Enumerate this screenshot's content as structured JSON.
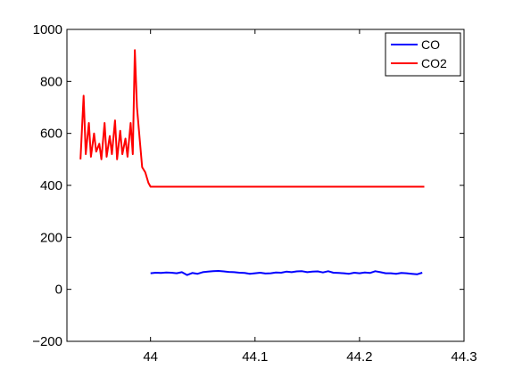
{
  "chart_data": {
    "type": "line",
    "title": "",
    "xlabel": "",
    "ylabel": "",
    "xlim": [
      43.92,
      44.3
    ],
    "ylim": [
      -200,
      1000
    ],
    "x_ticks": [
      44,
      44.1,
      44.2,
      44.3
    ],
    "x_tick_labels": [
      "44",
      "44.1",
      "44.2",
      "44.3"
    ],
    "y_ticks": [
      -200,
      0,
      200,
      400,
      600,
      800,
      1000
    ],
    "y_tick_labels": [
      "−200",
      "0",
      "200",
      "400",
      "600",
      "800",
      "1000"
    ],
    "grid": false,
    "legend_position": "top-right",
    "series": [
      {
        "name": "CO",
        "color": "#0000ff",
        "x": [
          44.0,
          44.005,
          44.01,
          44.015,
          44.02,
          44.025,
          44.03,
          44.035,
          44.04,
          44.045,
          44.05,
          44.055,
          44.06,
          44.065,
          44.07,
          44.075,
          44.08,
          44.085,
          44.09,
          44.095,
          44.1,
          44.105,
          44.11,
          44.115,
          44.12,
          44.125,
          44.13,
          44.135,
          44.14,
          44.145,
          44.15,
          44.155,
          44.16,
          44.165,
          44.17,
          44.175,
          44.18,
          44.185,
          44.19,
          44.195,
          44.2,
          44.205,
          44.21,
          44.215,
          44.22,
          44.225,
          44.23,
          44.235,
          44.24,
          44.245,
          44.25,
          44.255,
          44.26
        ],
        "y": [
          62,
          64,
          63,
          65,
          64,
          62,
          66,
          55,
          63,
          60,
          66,
          68,
          70,
          71,
          69,
          67,
          66,
          64,
          63,
          60,
          62,
          64,
          61,
          62,
          65,
          64,
          68,
          66,
          69,
          70,
          66,
          68,
          69,
          65,
          70,
          64,
          63,
          62,
          60,
          64,
          62,
          65,
          63,
          70,
          66,
          62,
          62,
          60,
          63,
          62,
          60,
          58,
          64
        ]
      },
      {
        "name": "CO2",
        "color": "#ff0000",
        "x": [
          43.933,
          43.936,
          43.938,
          43.941,
          43.943,
          43.946,
          43.948,
          43.951,
          43.953,
          43.956,
          43.958,
          43.961,
          43.963,
          43.966,
          43.968,
          43.971,
          43.973,
          43.976,
          43.978,
          43.981,
          43.983,
          43.985,
          43.987,
          43.99,
          43.992,
          43.995,
          43.998,
          44.0,
          44.02,
          44.04,
          44.06,
          44.08,
          44.1,
          44.12,
          44.14,
          44.16,
          44.18,
          44.2,
          44.22,
          44.24,
          44.262
        ],
        "y": [
          500,
          745,
          520,
          640,
          510,
          600,
          530,
          560,
          500,
          640,
          510,
          590,
          520,
          650,
          500,
          610,
          520,
          580,
          510,
          640,
          520,
          920,
          700,
          560,
          470,
          450,
          410,
          395,
          395,
          395,
          395,
          395,
          395,
          395,
          395,
          395,
          395,
          395,
          395,
          395,
          395
        ]
      }
    ]
  }
}
